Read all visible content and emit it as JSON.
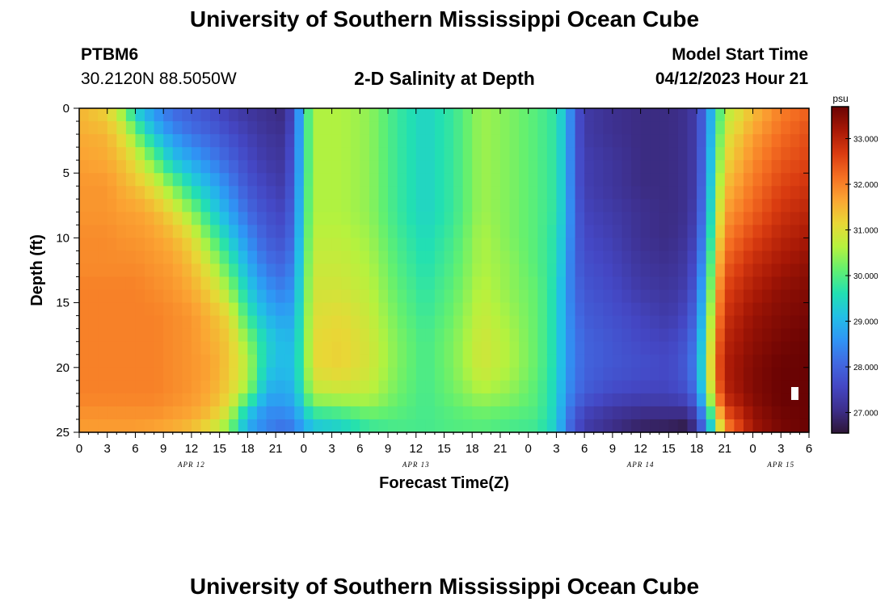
{
  "header": {
    "title": "University of Southern Mississippi Ocean Cube",
    "station_id": "PTBM6",
    "coordinates": "30.2120N  88.5050W",
    "subtitle": "2-D Salinity at Depth",
    "start_label": "Model Start Time",
    "start_value": "04/12/2023 Hour 21"
  },
  "footer": {
    "title": "University of Southern Mississippi Ocean Cube"
  },
  "colors": {
    "background": "#ffffff",
    "text": "#000000",
    "marker": "#ffffff"
  },
  "chart_data": {
    "type": "heatmap",
    "title": "2-D Salinity at Depth",
    "xlabel": "Forecast Time(Z)",
    "ylabel": "Depth (ft)",
    "x_unit": "forecast hours from 04/12 00Z",
    "xlim": [
      0,
      78
    ],
    "ylim": [
      0,
      25
    ],
    "y_inverted": true,
    "x_tick_values": [
      0,
      3,
      6,
      9,
      12,
      15,
      18,
      21,
      24,
      27,
      30,
      33,
      36,
      39,
      42,
      45,
      48,
      51,
      54,
      57,
      60,
      63,
      66,
      69,
      72,
      75,
      78
    ],
    "x_tick_labels": [
      "0",
      "3",
      "6",
      "9",
      "12",
      "15",
      "18",
      "21",
      "0",
      "3",
      "6",
      "9",
      "12",
      "15",
      "18",
      "21",
      "0",
      "3",
      "6",
      "9",
      "12",
      "15",
      "18",
      "21",
      "0",
      "3",
      "6"
    ],
    "y_tick_values": [
      0,
      5,
      10,
      15,
      20,
      25
    ],
    "y_tick_labels": [
      "0",
      "5",
      "10",
      "15",
      "20",
      "25"
    ],
    "date_labels": [
      {
        "x": 12,
        "label": "APR 12"
      },
      {
        "x": 36,
        "label": "APR 13"
      },
      {
        "x": 60,
        "label": "APR 14"
      },
      {
        "x": 75,
        "label": "APR 15"
      }
    ],
    "depth_levels": [
      0,
      1,
      2,
      4,
      6,
      8,
      10,
      12,
      14,
      16,
      18,
      20,
      22,
      23,
      24,
      25
    ],
    "profiles": [
      {
        "t": 0,
        "s": [
          31.5,
          31.5,
          31.6,
          31.7,
          31.8,
          31.8,
          31.9,
          31.9,
          32.0,
          32.0,
          32.0,
          32.0,
          32.0,
          31.9,
          31.8,
          31.7
        ]
      },
      {
        "t": 3,
        "s": [
          31.2,
          31.3,
          31.5,
          31.6,
          31.8,
          31.8,
          31.9,
          31.9,
          32.0,
          32.0,
          32.0,
          32.0,
          32.0,
          31.9,
          31.8,
          31.7
        ]
      },
      {
        "t": 5,
        "s": [
          30.1,
          30.6,
          30.9,
          31.3,
          31.5,
          31.7,
          31.8,
          31.9,
          32.0,
          32.0,
          32.0,
          32.0,
          32.0,
          31.9,
          31.8,
          31.7
        ]
      },
      {
        "t": 6,
        "s": [
          29.2,
          29.7,
          30.3,
          31.0,
          31.4,
          31.7,
          31.8,
          31.9,
          32.0,
          32.0,
          32.0,
          32.0,
          32.0,
          31.9,
          31.8,
          31.7
        ]
      },
      {
        "t": 8,
        "s": [
          28.6,
          28.8,
          29.2,
          30.2,
          31.0,
          31.5,
          31.7,
          31.8,
          31.9,
          32.0,
          32.0,
          32.0,
          32.0,
          31.9,
          31.8,
          31.6
        ]
      },
      {
        "t": 10,
        "s": [
          28.1,
          28.2,
          28.6,
          29.2,
          30.3,
          31.1,
          31.5,
          31.7,
          31.8,
          31.9,
          31.9,
          31.9,
          31.9,
          31.8,
          31.7,
          31.5
        ]
      },
      {
        "t": 12,
        "s": [
          27.9,
          28.0,
          28.2,
          28.8,
          29.5,
          30.4,
          31.1,
          31.4,
          31.6,
          31.8,
          31.8,
          31.8,
          31.8,
          31.7,
          31.6,
          31.3
        ]
      },
      {
        "t": 14,
        "s": [
          27.7,
          27.8,
          28.0,
          28.4,
          29.0,
          29.5,
          30.2,
          30.8,
          31.2,
          31.5,
          31.6,
          31.7,
          31.6,
          31.5,
          31.3,
          30.9
        ]
      },
      {
        "t": 16,
        "s": [
          27.4,
          27.5,
          27.7,
          28.0,
          28.4,
          28.8,
          29.3,
          29.9,
          30.5,
          31.1,
          31.3,
          31.3,
          31.2,
          31.0,
          30.6,
          30.2
        ]
      },
      {
        "t": 18,
        "s": [
          27.2,
          27.3,
          27.4,
          27.6,
          27.8,
          28.1,
          28.5,
          28.9,
          29.3,
          29.8,
          30.4,
          30.7,
          30.4,
          29.5,
          29.0,
          28.8
        ]
      },
      {
        "t": 20,
        "s": [
          27.1,
          27.1,
          27.2,
          27.3,
          27.5,
          27.7,
          27.9,
          28.2,
          28.6,
          29.0,
          29.4,
          29.3,
          28.9,
          28.6,
          28.4,
          28.4
        ]
      },
      {
        "t": 22,
        "s": [
          27.0,
          27.0,
          27.1,
          27.2,
          27.3,
          27.5,
          27.7,
          28.0,
          28.3,
          28.7,
          29.0,
          29.0,
          28.8,
          28.6,
          28.3,
          28.1
        ]
      },
      {
        "t": 23,
        "s": [
          27.8,
          27.8,
          27.9,
          28.0,
          28.1,
          28.2,
          28.3,
          28.5,
          28.7,
          28.9,
          29.1,
          29.2,
          29.0,
          28.8,
          28.5,
          28.3
        ]
      },
      {
        "t": 24,
        "s": [
          29.4,
          29.4,
          29.4,
          29.4,
          29.5,
          29.6,
          29.7,
          29.8,
          29.9,
          30.0,
          30.0,
          30.0,
          29.8,
          29.4,
          29.0,
          28.7
        ]
      },
      {
        "t": 25,
        "s": [
          30.6,
          30.6,
          30.6,
          30.6,
          30.6,
          30.6,
          30.7,
          30.8,
          30.9,
          31.0,
          31.1,
          31.1,
          30.7,
          30.1,
          29.5,
          29.0
        ]
      },
      {
        "t": 28,
        "s": [
          30.6,
          30.6,
          30.6,
          30.6,
          30.6,
          30.6,
          30.7,
          30.8,
          30.9,
          31.1,
          31.2,
          31.2,
          30.8,
          30.2,
          29.7,
          29.2
        ]
      },
      {
        "t": 31,
        "s": [
          30.4,
          30.4,
          30.4,
          30.4,
          30.4,
          30.4,
          30.5,
          30.6,
          30.7,
          30.8,
          30.9,
          30.9,
          30.7,
          30.4,
          30.0,
          29.7
        ]
      },
      {
        "t": 34,
        "s": [
          29.8,
          29.8,
          29.8,
          29.8,
          29.8,
          29.8,
          29.9,
          30.0,
          30.1,
          30.2,
          30.3,
          30.3,
          30.2,
          30.1,
          30.0,
          29.9
        ]
      },
      {
        "t": 37,
        "s": [
          29.4,
          29.4,
          29.4,
          29.4,
          29.4,
          29.4,
          29.5,
          29.6,
          29.7,
          29.8,
          29.9,
          29.9,
          29.9,
          29.9,
          29.9,
          29.9
        ]
      },
      {
        "t": 40,
        "s": [
          29.8,
          29.8,
          29.8,
          29.8,
          29.8,
          29.8,
          29.9,
          30.0,
          30.1,
          30.2,
          30.3,
          30.3,
          30.2,
          30.1,
          30.0,
          30.0
        ]
      },
      {
        "t": 43,
        "s": [
          30.5,
          30.5,
          30.5,
          30.5,
          30.5,
          30.5,
          30.6,
          30.6,
          30.7,
          30.8,
          30.9,
          30.9,
          30.6,
          30.3,
          30.1,
          30.0
        ]
      },
      {
        "t": 46,
        "s": [
          30.3,
          30.3,
          30.3,
          30.3,
          30.3,
          30.3,
          30.3,
          30.4,
          30.4,
          30.5,
          30.6,
          30.6,
          30.4,
          30.2,
          30.0,
          29.9
        ]
      },
      {
        "t": 49,
        "s": [
          30.0,
          30.0,
          30.0,
          30.0,
          30.0,
          30.0,
          30.0,
          30.0,
          30.1,
          30.1,
          30.1,
          30.1,
          30.0,
          30.0,
          29.9,
          29.8
        ]
      },
      {
        "t": 51,
        "s": [
          29.7,
          29.7,
          29.7,
          29.7,
          29.7,
          29.7,
          29.6,
          29.6,
          29.5,
          29.5,
          29.5,
          29.5,
          29.4,
          29.4,
          29.3,
          29.3
        ]
      },
      {
        "t": 52,
        "s": [
          29.0,
          29.0,
          29.0,
          29.0,
          29.0,
          29.0,
          28.9,
          28.8,
          28.7,
          28.7,
          28.7,
          28.7,
          28.6,
          28.5,
          28.4,
          28.3
        ]
      },
      {
        "t": 53,
        "s": [
          27.9,
          27.9,
          27.9,
          27.9,
          27.9,
          28.0,
          28.0,
          28.0,
          28.1,
          28.2,
          28.3,
          28.3,
          28.2,
          28.0,
          27.8,
          27.7
        ]
      },
      {
        "t": 54,
        "s": [
          27.3,
          27.3,
          27.3,
          27.4,
          27.4,
          27.5,
          27.6,
          27.7,
          27.8,
          27.9,
          28.0,
          28.0,
          27.9,
          27.6,
          27.4,
          27.3
        ]
      },
      {
        "t": 57,
        "s": [
          27.1,
          27.1,
          27.1,
          27.2,
          27.2,
          27.3,
          27.4,
          27.5,
          27.6,
          27.7,
          27.8,
          27.8,
          27.6,
          27.3,
          27.1,
          27.0
        ]
      },
      {
        "t": 60,
        "s": [
          27.0,
          27.0,
          27.0,
          27.0,
          27.0,
          27.1,
          27.1,
          27.2,
          27.3,
          27.5,
          27.6,
          27.7,
          27.5,
          27.2,
          26.9,
          26.8
        ]
      },
      {
        "t": 63,
        "s": [
          27.0,
          27.0,
          27.0,
          27.0,
          27.0,
          27.0,
          27.0,
          27.1,
          27.2,
          27.3,
          27.5,
          27.6,
          27.5,
          27.2,
          26.9,
          26.7
        ]
      },
      {
        "t": 65,
        "s": [
          27.1,
          27.1,
          27.1,
          27.1,
          27.1,
          27.1,
          27.2,
          27.3,
          27.4,
          27.6,
          27.8,
          27.9,
          27.7,
          27.3,
          26.8,
          26.6
        ]
      },
      {
        "t": 66,
        "s": [
          27.4,
          27.4,
          27.4,
          27.4,
          27.4,
          27.5,
          27.6,
          27.8,
          28.0,
          28.2,
          28.4,
          28.5,
          28.3,
          27.9,
          27.4,
          27.2
        ]
      },
      {
        "t": 67,
        "s": [
          28.3,
          28.3,
          28.3,
          28.4,
          28.5,
          28.6,
          28.8,
          29.0,
          29.3,
          29.6,
          29.9,
          30.1,
          29.8,
          29.2,
          28.7,
          28.4
        ]
      },
      {
        "t": 68,
        "s": [
          29.5,
          29.5,
          29.6,
          29.8,
          30.0,
          30.3,
          30.6,
          31.0,
          31.3,
          31.6,
          31.9,
          32.1,
          31.8,
          31.2,
          30.4,
          29.9
        ]
      },
      {
        "t": 69,
        "s": [
          30.6,
          30.7,
          30.9,
          31.1,
          31.4,
          31.7,
          32.0,
          32.3,
          32.6,
          32.8,
          33.0,
          33.1,
          33.0,
          32.7,
          32.2,
          31.8
        ]
      },
      {
        "t": 72,
        "s": [
          31.4,
          31.5,
          31.7,
          31.9,
          32.1,
          32.3,
          32.6,
          32.9,
          33.1,
          33.3,
          33.4,
          33.5,
          33.5,
          33.4,
          33.3,
          33.2
        ]
      },
      {
        "t": 75,
        "s": [
          32.0,
          32.1,
          32.2,
          32.4,
          32.6,
          32.8,
          33.0,
          33.2,
          33.4,
          33.5,
          33.6,
          33.7,
          33.7,
          33.7,
          33.6,
          33.6
        ]
      },
      {
        "t": 78,
        "s": [
          32.3,
          32.4,
          32.5,
          32.6,
          32.8,
          33.0,
          33.2,
          33.4,
          33.5,
          33.6,
          33.7,
          33.7,
          33.7,
          33.7,
          33.7,
          33.7
        ]
      }
    ],
    "colorbar": {
      "unit": "psu",
      "min": 26.55,
      "max": 33.7,
      "tick_values": [
        27,
        28,
        29,
        30,
        31,
        32,
        33
      ],
      "tick_labels": [
        "27.000",
        "28.000",
        "29.000",
        "30.000",
        "31.000",
        "32.000",
        "33.000"
      ]
    },
    "colormap": [
      "#2e1636",
      "#3d2f8c",
      "#4447c4",
      "#4169e1",
      "#2f95f5",
      "#22bfe6",
      "#22e0b2",
      "#62f070",
      "#b6f23e",
      "#e9d736",
      "#fba533",
      "#f56f22",
      "#d93b10",
      "#a71806",
      "#6a0303"
    ]
  }
}
